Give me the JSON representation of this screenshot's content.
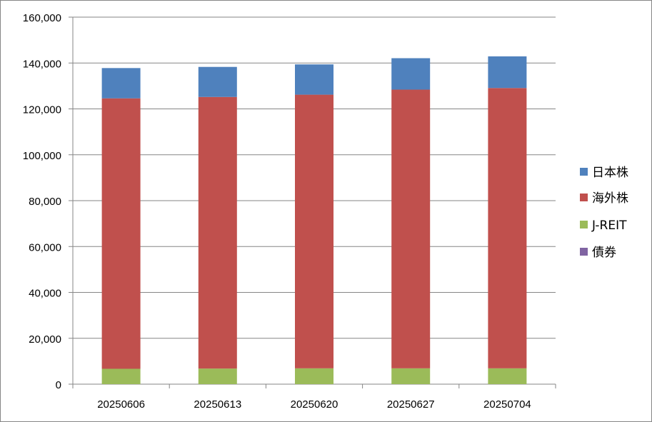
{
  "chart_data": {
    "type": "bar",
    "stacked": true,
    "categories": [
      "20250606",
      "20250613",
      "20250620",
      "20250627",
      "20250704"
    ],
    "series": [
      {
        "name": "債券",
        "color": "#8064A2",
        "values": [
          0,
          0,
          0,
          0,
          0
        ]
      },
      {
        "name": "J-REIT",
        "color": "#9BBB59",
        "values": [
          6700,
          6800,
          6900,
          6900,
          6900
        ]
      },
      {
        "name": "海外株",
        "color": "#C0504D",
        "values": [
          117900,
          118400,
          119300,
          121500,
          122200
        ]
      },
      {
        "name": "日本株",
        "color": "#4F81BD",
        "values": [
          13200,
          13100,
          13200,
          13700,
          13800
        ]
      }
    ],
    "legend": [
      "日本株",
      "海外株",
      "J-REIT",
      "債券"
    ],
    "legend_position": "right",
    "yticks": [
      "0",
      "20,000",
      "40,000",
      "60,000",
      "80,000",
      "100,000",
      "120,000",
      "140,000",
      "160,000"
    ],
    "ylim": [
      0,
      160000
    ],
    "grid": true,
    "title": "",
    "xlabel": "",
    "ylabel": ""
  }
}
